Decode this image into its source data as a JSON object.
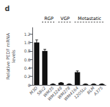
{
  "chart_data": {
    "type": "bar",
    "title": "d",
    "ylabel": "Relative PEDF mRNA\nlevels",
    "categories": [
      "M3D",
      "SBc2",
      "WM35",
      "WM3248",
      "WM278",
      "WM4164",
      "1205Lu",
      "BLM",
      "A375"
    ],
    "values": [
      1.0,
      0.8,
      0.02,
      0.05,
      0.02,
      0.3,
      0.02,
      0.02,
      0.02
    ],
    "errors": [
      0.06,
      0.04,
      0.005,
      0.005,
      0.005,
      0.03,
      0.005,
      0.005,
      0.005
    ],
    "color": "#111111",
    "ylim": [
      0,
      1.35
    ],
    "yticks": [
      0,
      0.2,
      0.4,
      0.6,
      0.8,
      {
        "value": 1.0,
        "label": "1.0"
      },
      1.2
    ],
    "annotations": [
      {
        "text": "RGP",
        "from": "SBc2",
        "to": "WM35"
      },
      {
        "text": "VGP",
        "from": "WM3248",
        "to": "WM278"
      },
      {
        "text": "Metastatic",
        "from": "WM4164",
        "to": "A375"
      }
    ],
    "grid": false
  }
}
